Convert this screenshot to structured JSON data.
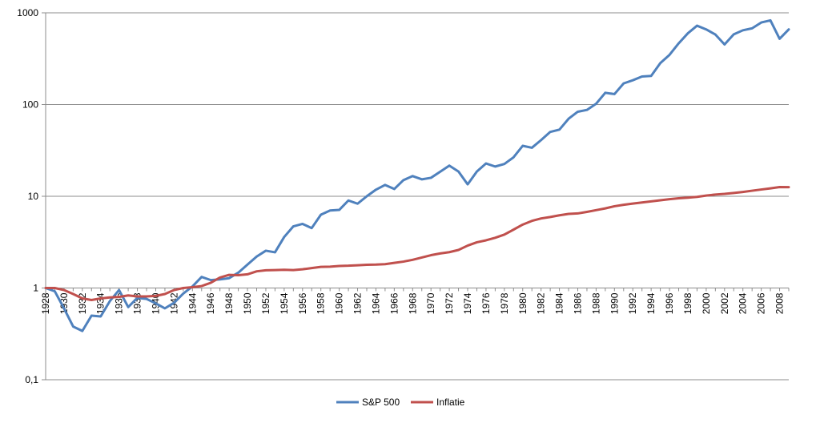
{
  "chart_data": {
    "type": "line",
    "title": "",
    "xlabel": "",
    "ylabel": "",
    "y_scale": "log",
    "ylim": [
      0.1,
      1000
    ],
    "y_ticks": [
      0.1,
      1,
      10,
      100,
      1000
    ],
    "y_tick_labels": [
      "0,1",
      "1",
      "10",
      "100",
      "1000"
    ],
    "x_ticks": [
      1928,
      1930,
      1932,
      1934,
      1936,
      1938,
      1940,
      1942,
      1944,
      1946,
      1948,
      1950,
      1952,
      1954,
      1956,
      1958,
      1960,
      1962,
      1964,
      1966,
      1968,
      1970,
      1972,
      1974,
      1976,
      1978,
      1980,
      1982,
      1984,
      1986,
      1988,
      1990,
      1992,
      1994,
      1996,
      1998,
      2000,
      2002,
      2004,
      2006,
      2008
    ],
    "x_tick_labels": [
      "1928",
      "1930",
      "1932",
      "1934",
      "1936",
      "1938",
      "1940",
      "1942",
      "1944",
      "1946",
      "1948",
      "1950",
      "1952",
      "1954",
      "1956",
      "1958",
      "1960",
      "1962",
      "1964",
      "1966",
      "1968",
      "1970",
      "1972",
      "1974",
      "1976",
      "1978",
      "1980",
      "1982",
      "1984",
      "1986",
      "1988",
      "1990",
      "1992",
      "1994",
      "1996",
      "1998",
      "2000",
      "2002",
      "2004",
      "2006",
      "2008"
    ],
    "grid": "horizontal",
    "legend_position": "bottom",
    "x": [
      1928,
      1929,
      1930,
      1931,
      1932,
      1933,
      1934,
      1935,
      1936,
      1937,
      1938,
      1939,
      1940,
      1941,
      1942,
      1943,
      1944,
      1945,
      1946,
      1947,
      1948,
      1949,
      1950,
      1951,
      1952,
      1953,
      1954,
      1955,
      1956,
      1957,
      1958,
      1959,
      1960,
      1961,
      1962,
      1963,
      1964,
      1965,
      1966,
      1967,
      1968,
      1969,
      1970,
      1971,
      1972,
      1973,
      1974,
      1975,
      1976,
      1977,
      1978,
      1979,
      1980,
      1981,
      1982,
      1983,
      1984,
      1985,
      1986,
      1987,
      1988,
      1989,
      1990,
      1991,
      1992,
      1993,
      1994,
      1995,
      1996,
      1997,
      1998,
      1999,
      2000,
      2001,
      2002,
      2003,
      2004,
      2005,
      2006,
      2007,
      2008,
      2009
    ],
    "series": [
      {
        "name": "S&P 500",
        "color": "#4F81BD",
        "values": [
          1.0,
          0.92,
          0.6,
          0.38,
          0.34,
          0.5,
          0.49,
          0.72,
          0.95,
          0.62,
          0.78,
          0.76,
          0.68,
          0.6,
          0.69,
          0.87,
          1.04,
          1.32,
          1.22,
          1.24,
          1.28,
          1.47,
          1.8,
          2.2,
          2.55,
          2.45,
          3.6,
          4.7,
          5.0,
          4.5,
          6.3,
          7.0,
          7.1,
          9.0,
          8.3,
          10.0,
          11.8,
          13.3,
          12.0,
          15.0,
          16.6,
          15.3,
          15.9,
          18.5,
          21.6,
          18.6,
          13.5,
          18.6,
          22.8,
          21.1,
          22.5,
          26.6,
          35.5,
          33.8,
          41.0,
          50.3,
          53.3,
          70.0,
          83.5,
          87.4,
          102.0,
          134.4,
          130.0,
          170.0,
          184.0,
          202.0,
          205.0,
          283.0,
          348.0,
          465.0,
          598.0,
          724.0,
          659.0,
          580.0,
          452.0,
          582.0,
          645.0,
          677.0,
          784.0,
          827.0,
          521.0,
          660.0
        ]
      },
      {
        "name": "Inflatie",
        "color": "#C0504D",
        "values": [
          1.0,
          1.0,
          0.95,
          0.86,
          0.77,
          0.74,
          0.77,
          0.79,
          0.8,
          0.83,
          0.81,
          0.81,
          0.82,
          0.86,
          0.95,
          1.0,
          1.02,
          1.05,
          1.14,
          1.3,
          1.39,
          1.38,
          1.41,
          1.52,
          1.56,
          1.57,
          1.58,
          1.57,
          1.6,
          1.65,
          1.7,
          1.71,
          1.74,
          1.75,
          1.77,
          1.79,
          1.8,
          1.82,
          1.88,
          1.94,
          2.03,
          2.15,
          2.28,
          2.38,
          2.46,
          2.6,
          2.9,
          3.15,
          3.31,
          3.53,
          3.82,
          4.33,
          4.91,
          5.39,
          5.73,
          5.94,
          6.2,
          6.42,
          6.5,
          6.76,
          7.06,
          7.38,
          7.79,
          8.08,
          8.33,
          8.56,
          8.79,
          9.04,
          9.3,
          9.5,
          9.65,
          9.85,
          10.17,
          10.45,
          10.62,
          10.86,
          11.15,
          11.5,
          11.85,
          12.2,
          12.6,
          12.57
        ]
      }
    ]
  }
}
